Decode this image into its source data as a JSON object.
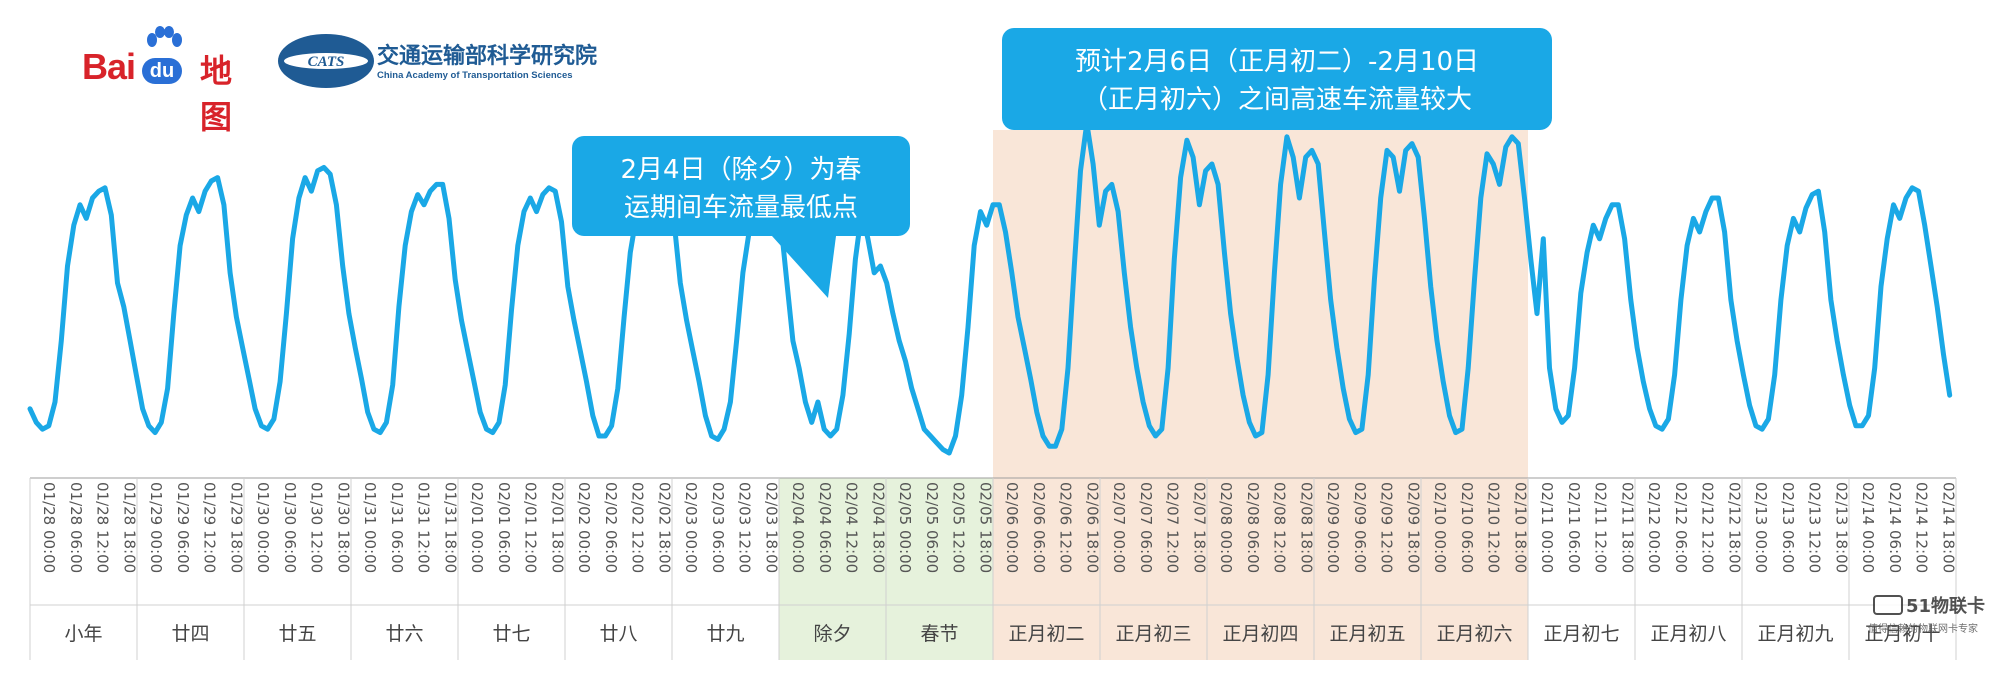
{
  "logos": {
    "baidu_text": "Bai",
    "baidu_du": "du",
    "baidu_map": "地图",
    "cats_mark": "CATS",
    "institute_cn": "交通运输部科学研究院",
    "institute_en": "China Academy of Transportation Sciences"
  },
  "colors": {
    "line": "#1aa8e6",
    "callout": "#1aa8e6",
    "highlight_peak": "#f9e6d8",
    "highlight_holiday": "#e6f2dc",
    "axis": "#9e9e9e"
  },
  "annotations": [
    {
      "lines": [
        "2月4日（除夕）为春",
        "运期间车流量最低点"
      ]
    },
    {
      "lines": [
        "预计2月6日（正月初二）-2月10日",
        "（正月初六）之间高速车流量较大"
      ]
    }
  ],
  "chart_data": {
    "type": "line",
    "title": "",
    "xlabel": "",
    "ylabel": "",
    "series": [
      {
        "values": [
          0.18,
          0.14,
          0.12,
          0.13,
          0.2,
          0.38,
          0.6,
          0.72,
          0.78,
          0.74,
          0.8,
          0.82,
          0.83,
          0.75,
          0.55,
          0.48,
          0.38,
          0.28,
          0.18,
          0.13,
          0.11,
          0.14,
          0.24,
          0.46,
          0.66,
          0.75,
          0.8,
          0.76,
          0.82,
          0.85,
          0.86,
          0.78,
          0.58,
          0.45,
          0.36,
          0.27,
          0.18,
          0.13,
          0.12,
          0.15,
          0.26,
          0.46,
          0.68,
          0.8,
          0.86,
          0.82,
          0.88,
          0.89,
          0.87,
          0.78,
          0.6,
          0.46,
          0.36,
          0.27,
          0.17,
          0.12,
          0.11,
          0.14,
          0.25,
          0.48,
          0.66,
          0.76,
          0.81,
          0.78,
          0.82,
          0.84,
          0.84,
          0.74,
          0.56,
          0.44,
          0.35,
          0.26,
          0.17,
          0.12,
          0.11,
          0.14,
          0.25,
          0.47,
          0.66,
          0.76,
          0.8,
          0.76,
          0.81,
          0.83,
          0.82,
          0.73,
          0.54,
          0.44,
          0.35,
          0.26,
          0.16,
          0.1,
          0.1,
          0.13,
          0.24,
          0.45,
          0.64,
          0.75,
          0.79,
          0.76,
          0.8,
          0.83,
          0.83,
          0.73,
          0.55,
          0.44,
          0.35,
          0.26,
          0.16,
          0.1,
          0.09,
          0.12,
          0.2,
          0.38,
          0.58,
          0.7,
          0.76,
          0.72,
          0.78,
          0.78,
          0.74,
          0.56,
          0.38,
          0.3,
          0.2,
          0.14,
          0.2,
          0.12,
          0.1,
          0.12,
          0.22,
          0.4,
          0.62,
          0.76,
          0.68,
          0.58,
          0.6,
          0.55,
          0.46,
          0.38,
          0.32,
          0.24,
          0.18,
          0.12,
          0.1,
          0.08,
          0.06,
          0.05,
          0.1,
          0.22,
          0.42,
          0.66,
          0.76,
          0.72,
          0.78,
          0.78,
          0.7,
          0.58,
          0.45,
          0.36,
          0.27,
          0.17,
          0.1,
          0.07,
          0.07,
          0.12,
          0.3,
          0.6,
          0.88,
          1.02,
          0.9,
          0.72,
          0.82,
          0.84,
          0.76,
          0.58,
          0.42,
          0.3,
          0.2,
          0.13,
          0.1,
          0.12,
          0.3,
          0.62,
          0.86,
          0.97,
          0.92,
          0.78,
          0.88,
          0.9,
          0.84,
          0.64,
          0.46,
          0.33,
          0.22,
          0.14,
          0.1,
          0.11,
          0.28,
          0.58,
          0.84,
          0.98,
          0.92,
          0.8,
          0.92,
          0.94,
          0.9,
          0.7,
          0.5,
          0.36,
          0.24,
          0.15,
          0.11,
          0.12,
          0.28,
          0.56,
          0.8,
          0.94,
          0.92,
          0.82,
          0.94,
          0.96,
          0.92,
          0.74,
          0.54,
          0.38,
          0.26,
          0.16,
          0.11,
          0.12,
          0.3,
          0.56,
          0.8,
          0.93,
          0.9,
          0.84,
          0.95,
          0.98,
          0.96,
          0.8,
          0.62,
          0.46,
          0.68,
          0.3,
          0.18,
          0.14,
          0.16,
          0.3,
          0.52,
          0.64,
          0.72,
          0.68,
          0.74,
          0.78,
          0.78,
          0.68,
          0.5,
          0.36,
          0.26,
          0.18,
          0.13,
          0.12,
          0.15,
          0.28,
          0.5,
          0.66,
          0.74,
          0.7,
          0.76,
          0.8,
          0.8,
          0.7,
          0.5,
          0.38,
          0.28,
          0.19,
          0.13,
          0.12,
          0.15,
          0.28,
          0.5,
          0.66,
          0.74,
          0.7,
          0.77,
          0.81,
          0.82,
          0.7,
          0.5,
          0.38,
          0.28,
          0.19,
          0.13,
          0.13,
          0.16,
          0.3,
          0.54,
          0.68,
          0.78,
          0.74,
          0.8,
          0.83,
          0.82,
          0.72,
          0.6,
          0.48,
          0.34,
          0.22
        ]
      }
    ],
    "x_labels": [
      "01/28 00:00",
      "01/28 06:00",
      "01/28 12:00",
      "01/28 18:00",
      "01/29 00:00",
      "01/29 06:00",
      "01/29 12:00",
      "01/29 18:00",
      "01/30 00:00",
      "01/30 06:00",
      "01/30 12:00",
      "01/30 18:00",
      "01/31 00:00",
      "01/31 06:00",
      "01/31 12:00",
      "01/31 18:00",
      "02/01 00:00",
      "02/01 06:00",
      "02/01 12:00",
      "02/01 18:00",
      "02/02 00:00",
      "02/02 06:00",
      "02/02 12:00",
      "02/02 18:00",
      "02/03 00:00",
      "02/03 06:00",
      "02/03 12:00",
      "02/03 18:00",
      "02/04 00:00",
      "02/04 06:00",
      "02/04 12:00",
      "02/04 18:00",
      "02/05 00:00",
      "02/05 06:00",
      "02/05 12:00",
      "02/05 18:00",
      "02/06 00:00",
      "02/06 06:00",
      "02/06 12:00",
      "02/06 18:00",
      "02/07 00:00",
      "02/07 06:00",
      "02/07 12:00",
      "02/07 18:00",
      "02/08 00:00",
      "02/08 06:00",
      "02/08 12:00",
      "02/08 18:00",
      "02/09 00:00",
      "02/09 06:00",
      "02/09 12:00",
      "02/09 18:00",
      "02/10 00:00",
      "02/10 06:00",
      "02/10 12:00",
      "02/10 18:00",
      "02/11 00:00",
      "02/11 06:00",
      "02/11 12:00",
      "02/11 18:00",
      "02/12 00:00",
      "02/12 06:00",
      "02/12 12:00",
      "02/12 18:00",
      "02/13 00:00",
      "02/13 06:00",
      "02/13 12:00",
      "02/13 18:00",
      "02/14 00:00",
      "02/14 06:00",
      "02/14 12:00",
      "02/14 18:00"
    ],
    "day_labels": [
      "小年",
      "廿四",
      "廿五",
      "廿六",
      "廿七",
      "廿八",
      "廿九",
      "除夕",
      "春节",
      "正月初二",
      "正月初三",
      "正月初四",
      "正月初五",
      "正月初六",
      "正月初七",
      "正月初八",
      "正月初九",
      "正月初十"
    ],
    "highlights": [
      {
        "label": "holiday",
        "from_day": 7,
        "to_day": 8
      },
      {
        "label": "peak",
        "from_day": 9,
        "to_day": 13
      }
    ],
    "grid": false,
    "legend": "none"
  },
  "watermark": {
    "logo": "51物联卡",
    "tagline": "值得信赖的物联网卡专家"
  }
}
